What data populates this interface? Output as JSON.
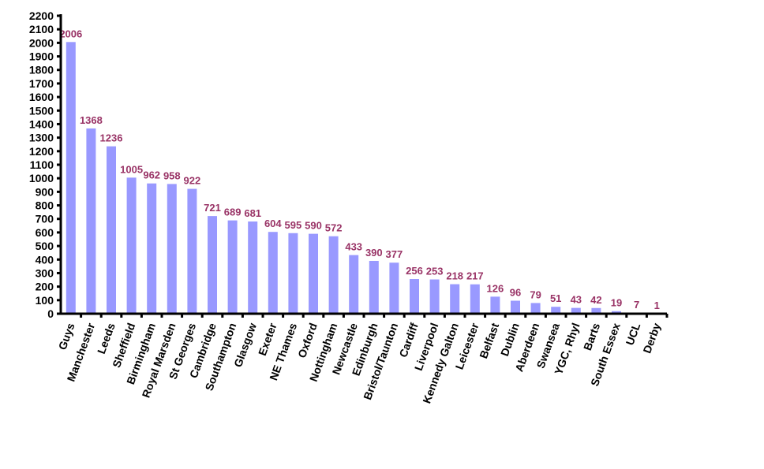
{
  "chart_data": {
    "type": "bar",
    "title": "",
    "xlabel": "",
    "ylabel": "",
    "ylim": [
      0,
      2200
    ],
    "ytick_step": 100,
    "grid": false,
    "legend": "none",
    "colors": {
      "bar": "#9999FF",
      "data_label": "#993366",
      "axis": "#000000"
    },
    "categories": [
      "Guys",
      "Manchester",
      "Leeds",
      "Sheffield",
      "Birmingham",
      "Royal Marsden",
      "St Georges",
      "Cambridge",
      "Southampton",
      "Glasgow",
      "Exeter",
      "NE Thames",
      "Oxford",
      "Nottingham",
      "Newcastle",
      "Edinburgh",
      "Bristol/Taunton",
      "Cardiff",
      "Liverpool",
      "Kennedy Galton",
      "Leicester",
      "Belfast",
      "Dublin",
      "Aberdeen",
      "Swansea",
      "YGC, Rhyl",
      "Barts",
      "South Essex",
      "UCL",
      "Derby"
    ],
    "values": [
      2006,
      1368,
      1236,
      1005,
      962,
      958,
      922,
      721,
      689,
      681,
      604,
      595,
      590,
      572,
      433,
      390,
      377,
      256,
      253,
      218,
      217,
      126,
      96,
      79,
      51,
      43,
      42,
      19,
      7,
      1
    ]
  }
}
